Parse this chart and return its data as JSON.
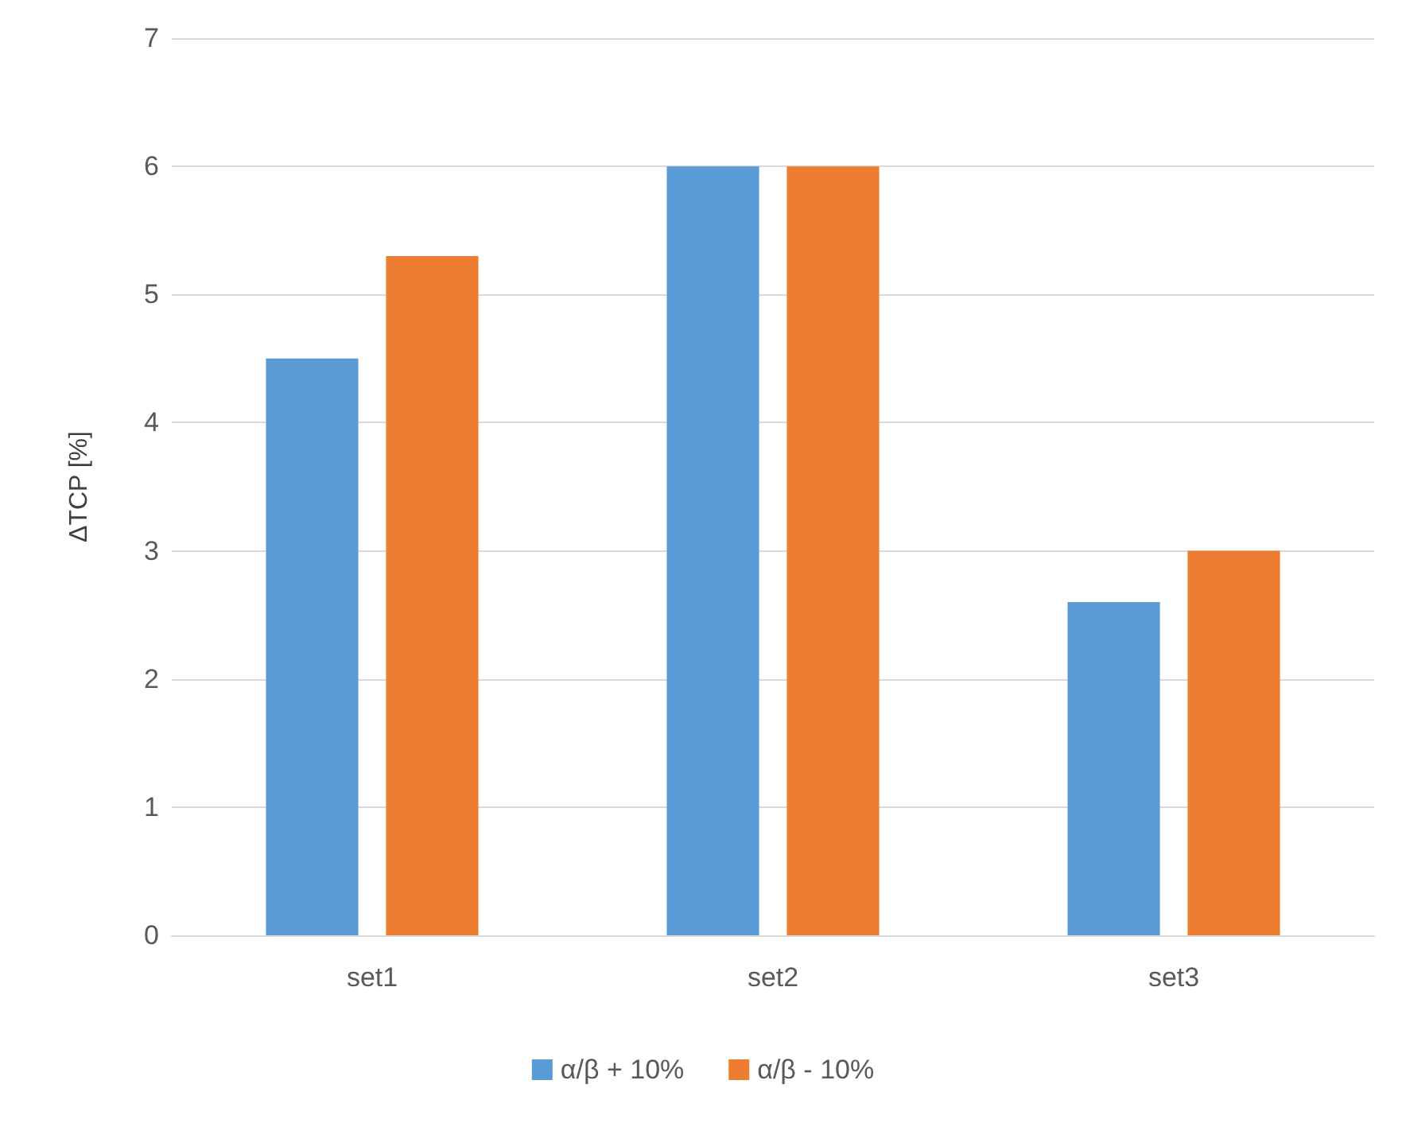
{
  "chart_data": {
    "type": "bar",
    "ylabel": "ΔTCP [%]",
    "categories": [
      "set1",
      "set2",
      "set3"
    ],
    "series": [
      {
        "name": "α/β + 10%",
        "color": "#5b9bd5",
        "values": [
          4.5,
          6,
          2.6
        ]
      },
      {
        "name": "α/β - 10%",
        "color": "#ed7d31",
        "values": [
          5.3,
          6,
          3.0
        ]
      }
    ],
    "ylim": [
      0,
      7
    ],
    "yticks": [
      0,
      1,
      2,
      3,
      4,
      5,
      6,
      7
    ],
    "grid": "y",
    "legend": "bottom"
  }
}
